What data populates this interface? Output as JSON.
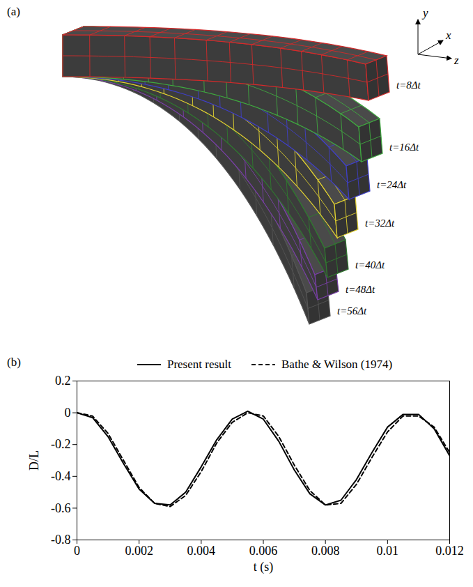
{
  "diagram": {
    "label": "(a)",
    "axes": [
      "y",
      "x",
      "z"
    ],
    "snapshots": [
      {
        "label": "t=8Δt",
        "color": "#d42a2a"
      },
      {
        "label": "t=16Δt",
        "color": "#3fa83f"
      },
      {
        "label": "t=24Δt",
        "color": "#3f3fc8"
      },
      {
        "label": "t=32Δt",
        "color": "#e0d030"
      },
      {
        "label": "t=40Δt",
        "color": "#2f7a2f"
      },
      {
        "label": "t=48Δt",
        "color": "#7a3fa8"
      },
      {
        "label": "t=56Δt",
        "color": "#555555"
      }
    ]
  },
  "chart_data": {
    "panel_label": "(b)",
    "type": "line",
    "x_label": "t (s)",
    "y_label": "D/L",
    "xlim": [
      0,
      0.012
    ],
    "xticks": [
      0,
      0.002,
      0.004,
      0.006,
      0.008,
      0.01,
      0.012
    ],
    "ylim": [
      -0.8,
      0.2
    ],
    "yticks": [
      -0.8,
      -0.6,
      -0.4,
      -0.2,
      0,
      0.2
    ],
    "legend": "top",
    "x": [
      0,
      0.0005,
      0.001,
      0.0015,
      0.002,
      0.0025,
      0.003,
      0.0035,
      0.004,
      0.0045,
      0.005,
      0.0055,
      0.006,
      0.0065,
      0.007,
      0.0075,
      0.008,
      0.0085,
      0.009,
      0.0095,
      0.01,
      0.0105,
      0.011,
      0.0115,
      0.012
    ],
    "series": [
      {
        "name": "Present result",
        "color": "#000000",
        "line_style": "solid",
        "values": [
          0,
          -0.03,
          -0.15,
          -0.32,
          -0.48,
          -0.57,
          -0.58,
          -0.5,
          -0.34,
          -0.17,
          -0.04,
          0.01,
          -0.04,
          -0.18,
          -0.36,
          -0.51,
          -0.58,
          -0.55,
          -0.42,
          -0.25,
          -0.09,
          -0.01,
          -0.01,
          -0.1,
          -0.27
        ]
      },
      {
        "name": "Bathe & Wilson (1974)",
        "color": "#000000",
        "line_style": "dashed",
        "values": [
          0,
          -0.02,
          -0.13,
          -0.3,
          -0.47,
          -0.57,
          -0.59,
          -0.52,
          -0.37,
          -0.19,
          -0.06,
          0,
          -0.02,
          -0.15,
          -0.33,
          -0.49,
          -0.58,
          -0.57,
          -0.45,
          -0.28,
          -0.12,
          -0.02,
          -0.02,
          -0.09,
          -0.25
        ]
      }
    ]
  }
}
